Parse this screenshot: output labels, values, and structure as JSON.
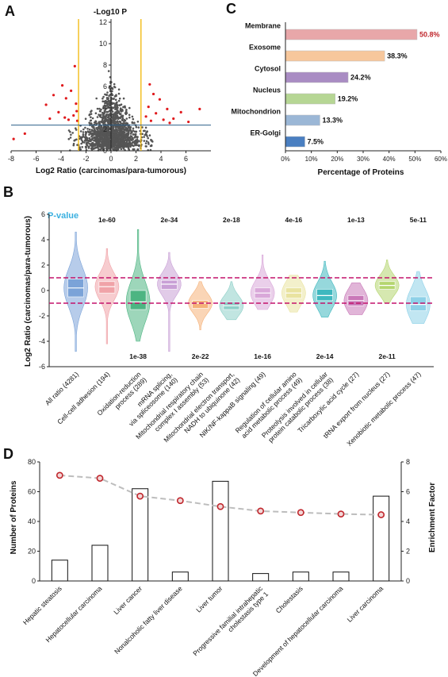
{
  "panels": {
    "a": "A",
    "b": "B",
    "c": "C",
    "d": "D"
  },
  "chart_data": [
    {
      "id": "A",
      "type": "scatter",
      "title": "",
      "xlabel": "Log2 Ratio (carcinomas/para-tumorous)",
      "ylabel": "-Log10 P",
      "xlim": [
        -8,
        8
      ],
      "ylim": [
        0,
        12
      ],
      "xticks": [
        -8,
        -6,
        -4,
        -2,
        0,
        2,
        4,
        6
      ],
      "yticks": [
        0,
        2,
        4,
        6,
        8,
        10,
        12
      ],
      "x_thresholds": [
        -2.6,
        2.4
      ],
      "y_threshold": 2.4,
      "colors": {
        "significant": "#e0191c",
        "other": "#555555",
        "threshold_v": "#f2b705",
        "threshold_h": "#2d5f8a"
      },
      "series": [
        {
          "points": [
            [
              -7.8,
              1.1
            ],
            [
              -6.9,
              1.6
            ],
            [
              -5.2,
              4.3
            ],
            [
              -4.6,
              5.2
            ],
            [
              -4.2,
              3.6
            ],
            [
              -3.9,
              6.1
            ],
            [
              -3.6,
              4.9
            ],
            [
              -3.4,
              2.9
            ],
            [
              -3.2,
              5.6
            ],
            [
              -3.0,
              3.3
            ],
            [
              -2.9,
              7.9
            ],
            [
              -2.8,
              4.4
            ],
            [
              -2.7,
              2.8
            ],
            [
              3.0,
              4.1
            ],
            [
              3.2,
              2.8
            ],
            [
              3.4,
              5.3
            ],
            [
              3.6,
              3.5
            ],
            [
              3.9,
              4.8
            ],
            [
              4.2,
              2.9
            ],
            [
              4.5,
              3.9
            ],
            [
              5.0,
              3.0
            ],
            [
              5.6,
              3.6
            ],
            [
              6.2,
              2.7
            ],
            [
              7.1,
              3.9
            ],
            [
              -4.9,
              3.0
            ],
            [
              -3.7,
              3.1
            ],
            [
              3.1,
              6.2
            ],
            [
              2.8,
              3.2
            ],
            [
              -2.75,
              3.7
            ],
            [
              4.7,
              2.6
            ]
          ]
        }
      ]
    },
    {
      "id": "C",
      "type": "bar",
      "orientation": "horizontal",
      "xlabel": "Percentage of Proteins",
      "xlim": [
        0,
        60
      ],
      "xticks": [
        "0%",
        "10%",
        "20%",
        "30%",
        "40%",
        "50%",
        "60%"
      ],
      "categories": [
        "Membrane",
        "Exosome",
        "Cytosol",
        "Nucleus",
        "Mitochondrion",
        "ER-Golgi"
      ],
      "values": [
        50.8,
        38.3,
        24.2,
        19.2,
        13.3,
        7.5
      ],
      "value_labels": [
        "50.8%",
        "38.3%",
        "24.2%",
        "19.2%",
        "13.3%",
        "7.5%"
      ],
      "colors": [
        "#e8a7a9",
        "#f7c79c",
        "#a98cc3",
        "#b6d694",
        "#9bb7d6",
        "#4a7fc1"
      ],
      "highlight_label_color": "#c0272d"
    },
    {
      "id": "B",
      "type": "violin",
      "ylabel": "Log2 Ratio (carcinomas/para-tumorous)",
      "ylim": [
        -6,
        6
      ],
      "yticks": [
        -6,
        -4,
        -2,
        0,
        2,
        4,
        6
      ],
      "thresholds": [
        1,
        -1
      ],
      "legend_label": "P-value",
      "categories": [
        "All ratio (4281)",
        "Cell-cell adhesion (194)",
        "Oxidation-reduction process (289)",
        "mRNA splicing, via spliceosome (140)",
        "Mitochondrial respiratory chain complex I assembly (53)",
        "Mitochondrial electron transport, NADH to ubiquinone (42)",
        "NIK/NF-kappaB signaling (49)",
        "Regulation of cellular amino acid metabolic process (49)",
        "Proteolysis involved in cellular protein catabolic process (38)",
        "Tricarboxylic acid cycle (27)",
        "tRNA export from nucleus (27)",
        "Xenobiotic metabolic process (47)"
      ],
      "label_lines": [
        [
          "All ratio (4281)"
        ],
        [
          "Cell-cell adhesion (194)"
        ],
        [
          "Oxidation-reduction",
          "process (289)"
        ],
        [
          "mRNA splicing,",
          "via spliceosome (140)"
        ],
        [
          "Mitochondrial respiratory chain",
          "complex I assembly (53)"
        ],
        [
          "Mitochondrial electron transport,",
          "NADH to ubiquinone (42)"
        ],
        [
          "NIK/NF-kappaB signaling (49)"
        ],
        [
          "Regulation of cellular amino",
          "acid metabolic process (49)"
        ],
        [
          "Proteolysis involved in cellular",
          "protein catabolic process (38)"
        ],
        [
          "Tricarboxylic acid cycle (27)"
        ],
        [
          "tRNA export from nucleus (27)"
        ],
        [
          "Xenobiotic metabolic process (47)"
        ]
      ],
      "pvalues": [
        "",
        "1e-60",
        "1e-38",
        "2e-34",
        "2e-22",
        "2e-18",
        "1e-16",
        "4e-16",
        "2e-14",
        "1e-13",
        "2e-11",
        "5e-11"
      ],
      "medians": [
        0.2,
        0.3,
        -0.9,
        0.5,
        -1.0,
        -1.2,
        -0.2,
        -0.2,
        -0.4,
        -0.8,
        0.4,
        -1.1
      ],
      "q1": [
        -0.5,
        -0.2,
        -1.5,
        0.1,
        -1.4,
        -1.5,
        -0.6,
        -0.6,
        -0.8,
        -1.2,
        0.1,
        -1.6
      ],
      "q3": [
        0.9,
        0.7,
        0.0,
        0.8,
        -0.8,
        -0.9,
        0.2,
        0.2,
        0.1,
        -0.4,
        0.7,
        -0.5
      ],
      "min": [
        -4.8,
        -4.2,
        -4.0,
        -4.8,
        -3.1,
        -2.3,
        -1.5,
        -1.7,
        -2.1,
        -1.9,
        -1.0,
        -2.6
      ],
      "max": [
        4.6,
        3.3,
        4.8,
        3.0,
        0.7,
        0.7,
        2.8,
        1.2,
        2.3,
        0.6,
        2.4,
        1.5
      ],
      "colors": [
        "#7ba3d8",
        "#f0a3a8",
        "#4db582",
        "#c9a0d6",
        "#f5b27a",
        "#8ed0c8",
        "#d9a8d9",
        "#e9e3a0",
        "#3fb8bf",
        "#c978b8",
        "#b5d670",
        "#8ed1e8"
      ]
    },
    {
      "id": "D",
      "type": "bar",
      "ylabel": "Number of Proteins",
      "y2label": "Enrichment Factor",
      "ylim": [
        0,
        80
      ],
      "yticks": [
        0,
        20,
        40,
        60,
        80
      ],
      "y2lim": [
        0,
        8
      ],
      "y2ticks": [
        0,
        2,
        4,
        6,
        8
      ],
      "categories": [
        "Hepatic steatosis",
        "Hepatocellular carcinoma",
        "Liver cancer",
        "Nonalcoholic fatty liver disease",
        "Liver tumor",
        "Progressive familial intrahepatic cholestasis type 1",
        "Cholestasis",
        "Development of hepatocellular carcinoma",
        "Liver carcinoma"
      ],
      "label_lines": [
        [
          "Hepatic steatosis"
        ],
        [
          "Hepatocellular carcinoma"
        ],
        [
          "Liver cancer"
        ],
        [
          "Nonalcoholic fatty liver disease"
        ],
        [
          "Liver tumor"
        ],
        [
          "Progressive familial intrahepatic",
          "cholestasis type 1"
        ],
        [
          "Cholestasis"
        ],
        [
          "Development of hepatocellular carcinoma"
        ],
        [
          "Liver carcinoma"
        ]
      ],
      "values": [
        14,
        24,
        62,
        6,
        67,
        5,
        6,
        6,
        57
      ],
      "series": [
        {
          "values": [
            7.1,
            6.9,
            5.7,
            5.4,
            5.0,
            4.7,
            4.6,
            4.5,
            4.45
          ]
        }
      ]
    }
  ]
}
